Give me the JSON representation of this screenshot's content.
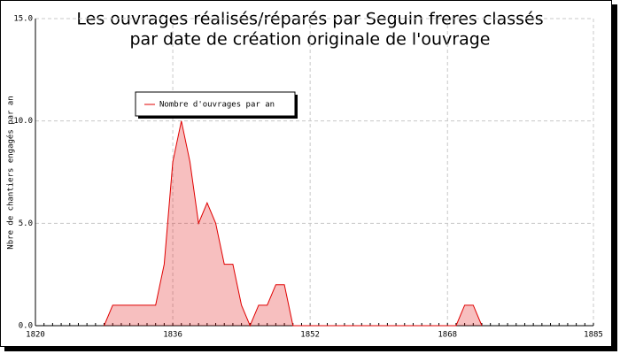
{
  "chart_data": {
    "type": "area",
    "title": [
      "Les ouvrages réalisés/réparés par Seguin freres classés",
      "par date de création originale de l'ouvrage"
    ],
    "y_label": "Nbre de chantiers engagés par an",
    "x": [
      1828,
      1829,
      1830,
      1831,
      1832,
      1833,
      1834,
      1835,
      1836,
      1837,
      1838,
      1839,
      1840,
      1841,
      1842,
      1843,
      1844,
      1845,
      1846,
      1847,
      1848,
      1849,
      1850,
      1851,
      1852,
      1853,
      1854,
      1855,
      1856,
      1857,
      1858,
      1859,
      1860,
      1861,
      1862,
      1863,
      1864,
      1865,
      1866,
      1867,
      1868,
      1869,
      1870,
      1871,
      1872
    ],
    "series": [
      {
        "name": "Nombre d'ouvrages par an",
        "color": "#e00000",
        "values": [
          0,
          1,
          1,
          1,
          1,
          1,
          1,
          3,
          8,
          10,
          8,
          5,
          6,
          5,
          3,
          3,
          1,
          0,
          1,
          1,
          2,
          2,
          0,
          0,
          0,
          0,
          0,
          0,
          0,
          0,
          0,
          0,
          0,
          0,
          0,
          0,
          0,
          0,
          0,
          0,
          0,
          0,
          1,
          1,
          0
        ]
      }
    ],
    "xlim": [
      1820,
      1885
    ],
    "xticks": [
      1820,
      1836,
      1852,
      1868,
      1885
    ],
    "ylim": [
      0,
      15
    ],
    "yticks": [
      {
        "value": 0,
        "label": "0.0"
      },
      {
        "value": 5,
        "label": "5.0"
      },
      {
        "value": 10,
        "label": "10.0"
      },
      {
        "value": 15,
        "label": "15.0"
      }
    ],
    "grid": true,
    "legend": "top-left"
  }
}
